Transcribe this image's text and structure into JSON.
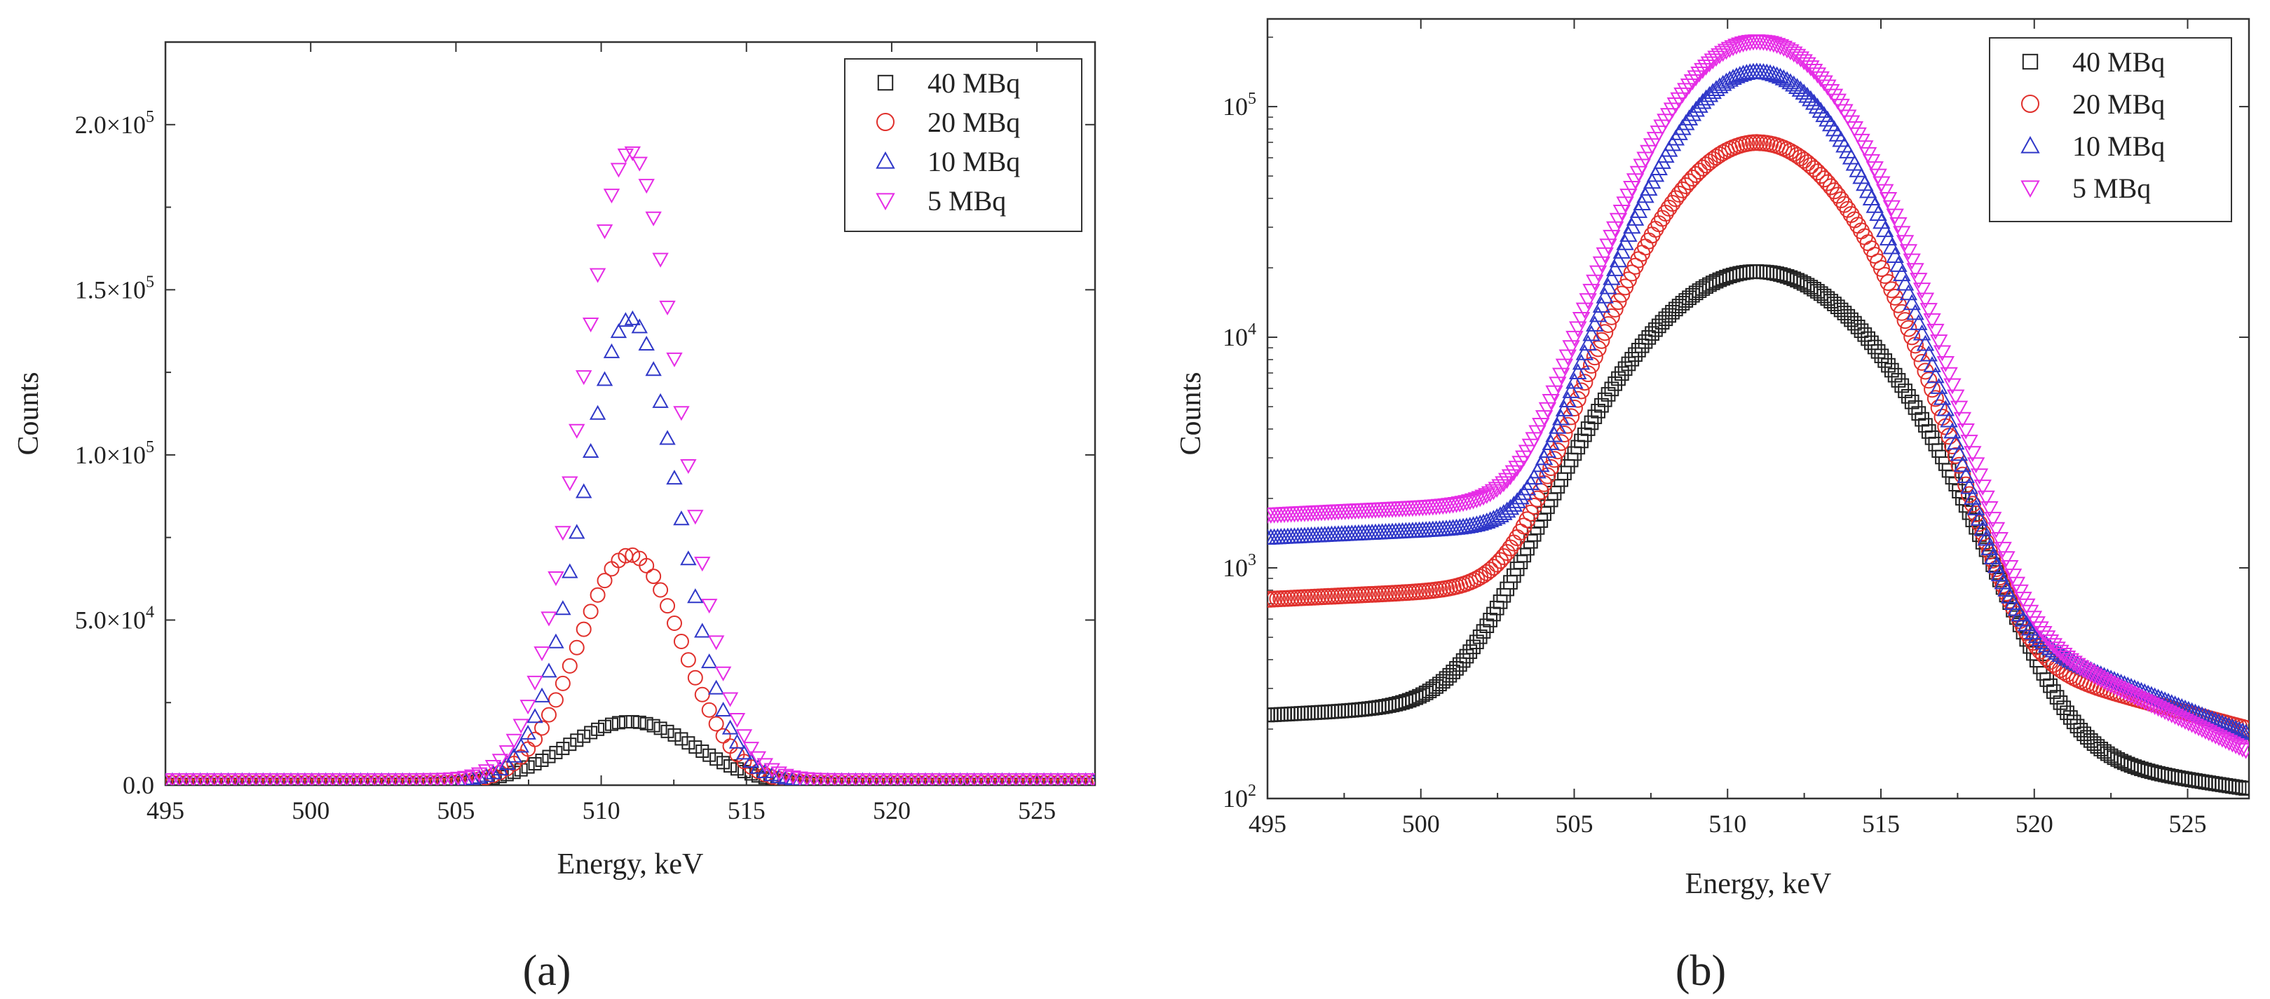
{
  "chart_data": [
    {
      "panel_label": "(a)",
      "type": "scatter",
      "yscale": "linear",
      "xlabel": "Energy, keV",
      "ylabel": "Counts",
      "xlim": [
        495,
        527
      ],
      "ylim": [
        0,
        225000
      ],
      "xticks": [
        495,
        500,
        505,
        510,
        515,
        520,
        525
      ],
      "yticks": [
        0,
        50000,
        100000,
        150000,
        200000
      ],
      "ytick_labels": [
        {
          "mant": "0.0",
          "exp": ""
        },
        {
          "mant": "5.0×10",
          "exp": "4"
        },
        {
          "mant": "1.0×10",
          "exp": "5"
        },
        {
          "mant": "1.5×10",
          "exp": "5"
        },
        {
          "mant": "2.0×10",
          "exp": "5"
        }
      ],
      "legend_position": "top-right",
      "peak_energy_keV": 511,
      "series": [
        {
          "name": "40 MBq",
          "marker": "square",
          "color": "#222222",
          "peak": 19000,
          "sigma": 2.2,
          "baseline": 230
        },
        {
          "name": "20 MBq",
          "marker": "circle",
          "color": "#e0302c",
          "peak": 69000,
          "sigma": 1.8,
          "baseline": 730
        },
        {
          "name": "10 MBq",
          "marker": "triangle-up",
          "color": "#2f37c8",
          "peak": 140000,
          "sigma": 1.65,
          "baseline": 1350
        },
        {
          "name": "5 MBq",
          "marker": "triangle-down",
          "color": "#e62ce6",
          "peak": 190000,
          "sigma": 1.7,
          "baseline": 1700
        }
      ]
    },
    {
      "panel_label": "(b)",
      "type": "scatter",
      "yscale": "log",
      "xlabel": "Energy, keV",
      "ylabel": "Counts",
      "xlim": [
        495,
        527
      ],
      "ylim": [
        100,
        240000
      ],
      "xticks": [
        495,
        500,
        505,
        510,
        515,
        520,
        525
      ],
      "yticks": [
        100,
        1000,
        10000,
        100000
      ],
      "ytick_labels": [
        {
          "mant": "10",
          "exp": "2"
        },
        {
          "mant": "10",
          "exp": "3"
        },
        {
          "mant": "10",
          "exp": "4"
        },
        {
          "mant": "10",
          "exp": "5"
        }
      ],
      "legend_position": "top-right",
      "peak_energy_keV": 511,
      "series": [
        {
          "name": "40 MBq",
          "marker": "square",
          "color": "#222222",
          "peak": 19000,
          "sigma": 2.2,
          "baseline": 230,
          "tail_at_527": 110
        },
        {
          "name": "20 MBq",
          "marker": "circle",
          "color": "#e0302c",
          "peak": 69000,
          "sigma": 1.8,
          "baseline": 730,
          "tail_at_527": 200
        },
        {
          "name": "10 MBq",
          "marker": "triangle-up",
          "color": "#2f37c8",
          "peak": 140000,
          "sigma": 1.65,
          "baseline": 1350,
          "tail_at_527": 190
        },
        {
          "name": "5 MBq",
          "marker": "triangle-down",
          "color": "#e62ce6",
          "peak": 190000,
          "sigma": 1.7,
          "baseline": 1700,
          "tail_at_527": 160
        }
      ]
    }
  ]
}
